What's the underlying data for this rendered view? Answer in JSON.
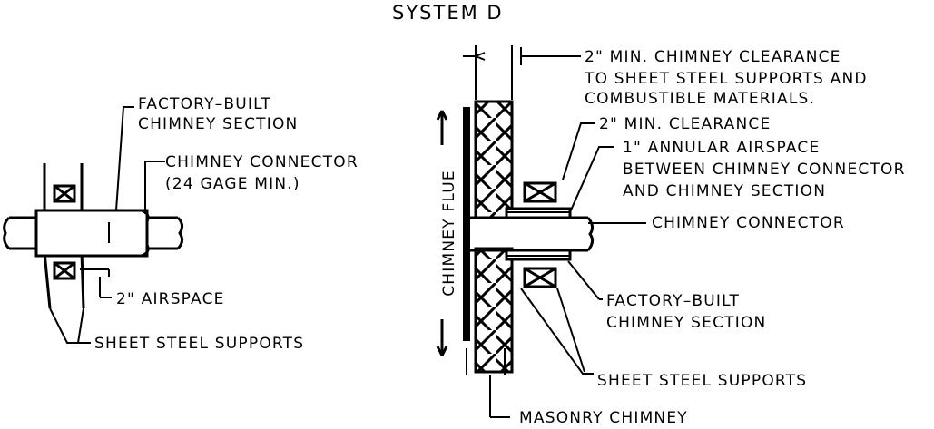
{
  "title": "SYSTEM D",
  "left": {
    "factory_built_1": "FACTORY–BUILT",
    "factory_built_2": "CHIMNEY SECTION",
    "connector_1": "CHIMNEY CONNECTOR",
    "connector_2": "(24 GAGE MIN.)",
    "airspace": "2\" AIRSPACE",
    "supports": "SHEET STEEL SUPPORTS"
  },
  "right": {
    "clearance_1": "2\" MIN. CHIMNEY CLEARANCE",
    "clearance_2": "TO SHEET STEEL SUPPORTS AND",
    "clearance_3": "COMBUSTIBLE MATERIALS.",
    "min_clearance": "2\" MIN. CLEARANCE",
    "annular_1": "1\" ANNULAR AIRSPACE",
    "annular_2": "BETWEEN CHIMNEY CONNECTOR",
    "annular_3": "AND CHIMNEY SECTION",
    "connector": "CHIMNEY CONNECTOR",
    "factory_built_1": "FACTORY–BUILT",
    "factory_built_2": "CHIMNEY SECTION",
    "supports": "SHEET STEEL SUPPORTS",
    "masonry": "MASONRY CHIMNEY",
    "flue": "CHIMNEY FLUE"
  }
}
